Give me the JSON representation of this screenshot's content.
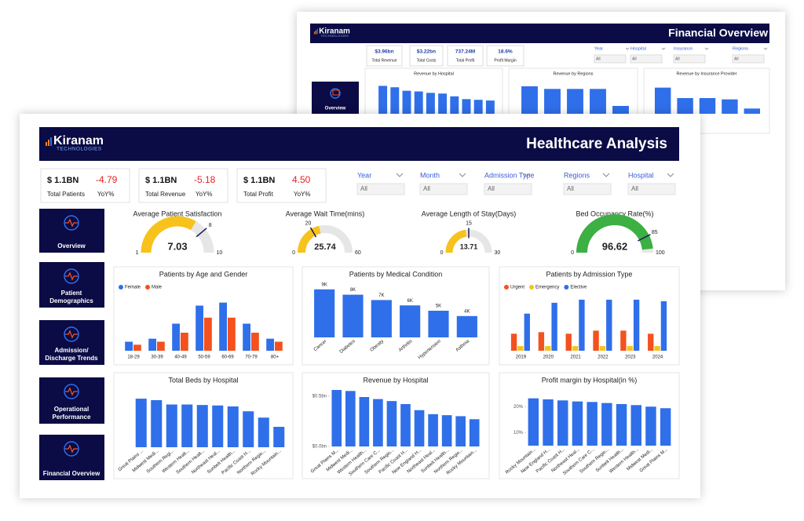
{
  "back_dashboard": {
    "logo": {
      "name": "Kiranam",
      "tagline": "TECHNOLOGIES"
    },
    "title": "Financial Overview",
    "kpis": [
      {
        "value": "$3.96bn",
        "label": "Total Revenue"
      },
      {
        "value": "$3.22bn",
        "label": "Total Costs"
      },
      {
        "value": "737.24M",
        "label": "Total Profit"
      },
      {
        "value": "18.6%",
        "label": "Profit Margin"
      }
    ],
    "filters": [
      {
        "label": "Year",
        "value": "All"
      },
      {
        "label": "Hospital",
        "value": "All"
      },
      {
        "label": "Insurance",
        "value": "All"
      },
      {
        "label": "Regions",
        "value": "All"
      }
    ],
    "nav": [
      [
        "Overview"
      ]
    ]
  },
  "dashboard": {
    "logo": {
      "name": "Kiranam",
      "tagline": "TECHNOLOGIES"
    },
    "title": "Healthcare Analysis",
    "kpis": [
      {
        "value": "$ 1.1BN",
        "yoy": "-4.79",
        "label": "Total Patients",
        "yoy_label": "YoY%"
      },
      {
        "value": "$ 1.1BN",
        "yoy": "-5.18",
        "label": "Total Revenue",
        "yoy_label": "YoY%"
      },
      {
        "value": "$ 1.1BN",
        "yoy": "4.50",
        "label": "Total Profit",
        "yoy_label": "YoY%"
      }
    ],
    "filters": [
      {
        "label": "Year",
        "value": "All"
      },
      {
        "label": "Month",
        "value": "All"
      },
      {
        "label": "Admission Type",
        "value": "All"
      },
      {
        "label": "Regions",
        "value": "All"
      },
      {
        "label": "Hospital",
        "value": "All"
      }
    ],
    "nav": [
      [
        "Overview"
      ],
      [
        "Patient",
        "Demographics"
      ],
      [
        "Admission/",
        "Discharge Trends"
      ],
      [
        "Operational",
        "Performance"
      ],
      [
        "Financial Overview"
      ]
    ]
  },
  "chart_data": [
    {
      "type": "gauge",
      "title": "Average Patient Satisfaction",
      "value": 7.03,
      "ylim": [
        1,
        10
      ],
      "target": 8,
      "color": "#f7c21b"
    },
    {
      "type": "gauge",
      "title": "Average Wait Time(mins)",
      "value": 25.74,
      "ylim": [
        0,
        60
      ],
      "target": 20,
      "color": "#f7c21b"
    },
    {
      "type": "gauge",
      "title": "Average Length of Stay(Days)",
      "value": 13.71,
      "ylim": [
        0,
        30
      ],
      "target": 15,
      "color": "#f7c21b"
    },
    {
      "type": "gauge",
      "title": "Bed Occupancy Rate(%)",
      "value": 96.62,
      "ylim": [
        0,
        100
      ],
      "target": 85,
      "color": "#3cb043"
    },
    {
      "type": "bar",
      "title": "Patients by Age and Gender",
      "categories": [
        "18-29",
        "30-39",
        "40-49",
        "50-59",
        "60-69",
        "70-79",
        "80+"
      ],
      "series": [
        {
          "name": "Female",
          "color": "#2f6fea",
          "values": [
            1.5,
            2,
            4.5,
            7.5,
            8,
            4.5,
            2
          ]
        },
        {
          "name": "Male",
          "color": "#f4511e",
          "values": [
            1,
            1.5,
            3,
            5.5,
            5.5,
            3,
            1.5
          ]
        }
      ],
      "ylim": [
        0,
        9
      ]
    },
    {
      "type": "bar",
      "title": "Patients by Medical Condition",
      "categories": [
        "Cancer",
        "Diabetes",
        "Obesity",
        "Arthritis",
        "Hypertension",
        "Asthma"
      ],
      "values": [
        9000,
        8000,
        7000,
        6000,
        5000,
        4000
      ],
      "value_labels": [
        "9K",
        "8K",
        "7K",
        "6K",
        "5K",
        "4K"
      ],
      "color": "#2f6fea",
      "ylim": [
        0,
        10000
      ]
    },
    {
      "type": "bar",
      "title": "Patients by Admission Type",
      "categories": [
        "2019",
        "2020",
        "2021",
        "2022",
        "2023",
        "2024"
      ],
      "series": [
        {
          "name": "Urgent",
          "color": "#f4511e",
          "values": [
            2.2,
            2.4,
            2.2,
            2.6,
            2.6,
            2.2
          ]
        },
        {
          "name": "Emergency",
          "color": "#f7c21b",
          "values": [
            0.6,
            0.6,
            0.6,
            0.6,
            0.6,
            0.6
          ]
        },
        {
          "name": "Elective",
          "color": "#2f6fea",
          "values": [
            4.8,
            6.2,
            6.6,
            6.6,
            6.6,
            6.4
          ]
        }
      ],
      "ylim": [
        0,
        7
      ]
    },
    {
      "type": "bar",
      "title": "Total Beds by Hospital",
      "categories": [
        "Great Plains ...",
        "Midwest Medi...",
        "Southern Regi...",
        "Western Healt...",
        "Southern Healt...",
        "Northeast Heal...",
        "Sunbelt Health...",
        "Pacific Coast H...",
        "Northern Regio...",
        "Rocky Mountain..."
      ],
      "values": [
        100,
        97,
        88,
        88,
        87,
        86,
        84,
        74,
        61,
        42
      ],
      "color": "#2f6fea",
      "ylim": [
        0,
        105
      ]
    },
    {
      "type": "bar",
      "title": "Revenue by Hospital",
      "categories": [
        "Great Plains M...",
        "Midwest Medi...",
        "Western Health...",
        "Southern Care C...",
        "Southern Regio...",
        "Pacific Coast H...",
        "New England H...",
        "Northeast Heal...",
        "Sunbelt Health...",
        "Northern Regio...",
        "Rocky Mountain..."
      ],
      "values": [
        0.56,
        0.55,
        0.49,
        0.47,
        0.45,
        0.42,
        0.36,
        0.32,
        0.31,
        0.3,
        0.27
      ],
      "color": "#2f6fea",
      "ylim": [
        0,
        0.56
      ],
      "yticks": [
        {
          "value": 0,
          "label": "$0.0bn"
        },
        {
          "value": 0.5,
          "label": "$0.5bn"
        }
      ]
    },
    {
      "type": "bar",
      "title": "Profit margin by Hospital(in %)",
      "categories": [
        "Rocky Mountain...",
        "New England H...",
        "Pacific Coast H...",
        "Northeast Heal...",
        "Southern Care C...",
        "Southern Regio...",
        "Sunbelt Health...",
        "Western Health...",
        "Midwest Medi...",
        "Great Plains M..."
      ],
      "values": [
        23.2,
        22.8,
        22.4,
        22,
        21.8,
        21.4,
        21,
        20.6,
        20,
        19.4
      ],
      "color": "#2f6fea",
      "ylim": [
        5,
        24
      ],
      "yticks": [
        {
          "value": 10,
          "label": "10%"
        },
        {
          "value": 20,
          "label": "20%"
        }
      ]
    },
    {
      "type": "bar",
      "title": "Revenue by Hospital",
      "values": [
        0.4,
        0.38,
        0.33,
        0.32,
        0.3,
        0.29,
        0.25,
        0.21,
        0.2,
        0.19
      ],
      "color": "#2f6fea",
      "ylim": [
        0,
        0.45
      ]
    },
    {
      "type": "bar",
      "title": "Revenue by Regions",
      "values": [
        1.05,
        0.95,
        0.95,
        0.95,
        0.3
      ],
      "color": "#2f6fea",
      "ylim": [
        0,
        1.2
      ]
    },
    {
      "type": "bar",
      "title": "Revenue by Insurance Provider",
      "values": [
        1.0,
        0.6,
        0.6,
        0.55,
        0.2
      ],
      "color": "#2f6fea",
      "ylim": [
        0,
        1.2
      ]
    }
  ]
}
